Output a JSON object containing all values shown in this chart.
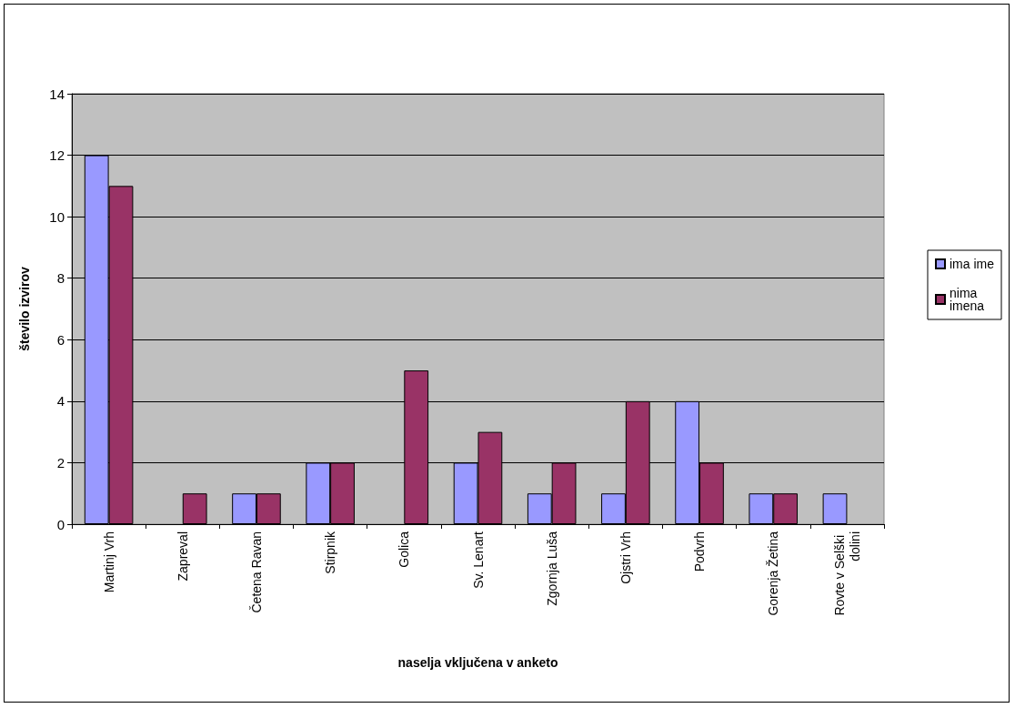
{
  "chart_data": {
    "type": "bar",
    "xlabel": "naselja vključena v anketo",
    "ylabel": "število izvirov",
    "categories": [
      "Martinj Vrh",
      "Zapreval",
      "Četena Ravan",
      "Stirpnik",
      "Golica",
      "Sv. Lenart",
      "Zgornja Luša",
      "Ojstri Vrh",
      "Podvrh",
      "Gorenja Žetina",
      "Rovte v Selški dolini"
    ],
    "series": [
      {
        "name": "ima ime",
        "color": "#9999ff",
        "values": [
          12,
          0,
          1,
          2,
          0,
          2,
          1,
          1,
          4,
          1,
          1
        ]
      },
      {
        "name": "nima imena",
        "color": "#993366",
        "values": [
          11,
          1,
          1,
          2,
          5,
          3,
          2,
          4,
          2,
          1,
          0
        ]
      }
    ],
    "ylim": [
      0,
      14
    ],
    "yticks": [
      0,
      2,
      4,
      6,
      8,
      10,
      12,
      14
    ],
    "grid": "y",
    "legend": "right"
  }
}
